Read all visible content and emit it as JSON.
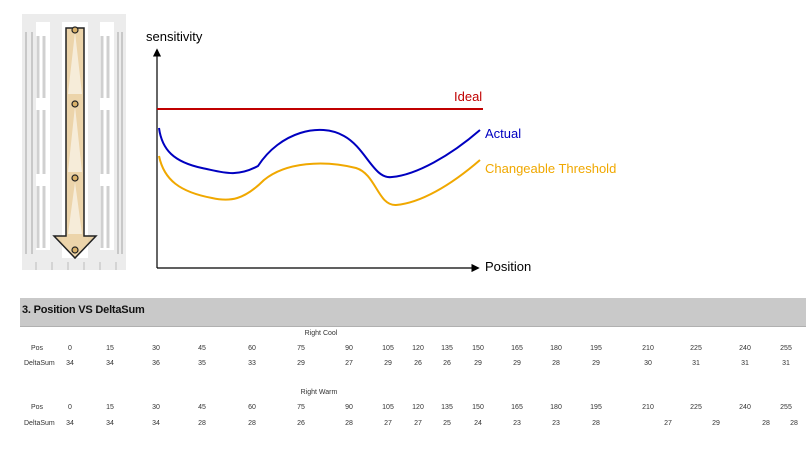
{
  "chart_data": {
    "type": "line",
    "xlabel": "Position",
    "ylabel": "sensitivity",
    "series": [
      {
        "name": "Ideal",
        "color": "#c00000"
      },
      {
        "name": "Actual",
        "color": "#0000c0"
      },
      {
        "name": "Changeable Threshold",
        "color": "#f0a800"
      }
    ]
  },
  "section": {
    "title": "3. Position VS DeltaSum"
  },
  "tables": [
    {
      "title": "Right Cool",
      "rows": [
        {
          "label": "Pos",
          "values": [
            "0",
            "15",
            "30",
            "45",
            "60",
            "75",
            "90",
            "105",
            "120",
            "135",
            "150",
            "165",
            "180",
            "195",
            "210",
            "225",
            "240",
            "255"
          ]
        },
        {
          "label": "DeltaSum",
          "values": [
            "34",
            "34",
            "36",
            "35",
            "33",
            "29",
            "27",
            "29",
            "26",
            "26",
            "29",
            "29",
            "28",
            "29",
            "30",
            "31",
            "31",
            "31"
          ]
        }
      ]
    },
    {
      "title": "Right Warm",
      "rows": [
        {
          "label": "Pos",
          "values": [
            "0",
            "15",
            "30",
            "45",
            "60",
            "75",
            "90",
            "105",
            "120",
            "135",
            "150",
            "165",
            "180",
            "195",
            "210",
            "225",
            "240",
            "255"
          ]
        },
        {
          "label": "DeltaSum",
          "values": [
            "34",
            "34",
            "34",
            "28",
            "28",
            "26",
            "28",
            "27",
            "27",
            "25",
            "24",
            "23",
            "23",
            "28",
            "27",
            "29",
            "28",
            "28"
          ]
        }
      ]
    }
  ]
}
